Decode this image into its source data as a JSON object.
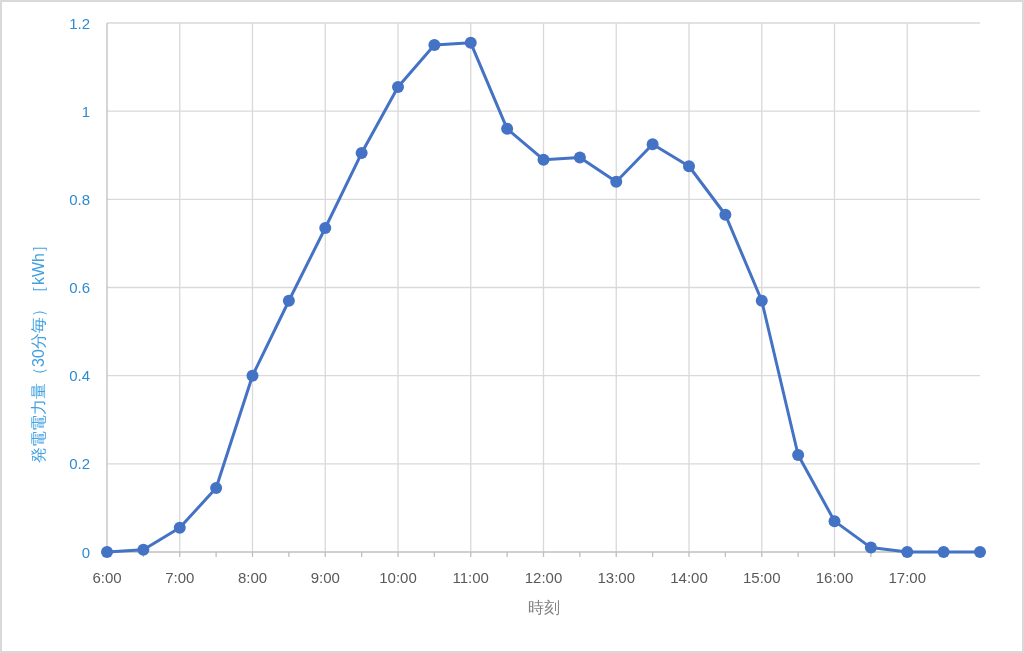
{
  "chart_data": {
    "type": "line",
    "xlabel": "時刻",
    "ylabel": "発電電力量（30分毎）［kWh］",
    "categories": [
      "6:00",
      null,
      "7:00",
      null,
      "8:00",
      null,
      "9:00",
      null,
      "10:00",
      null,
      "11:00",
      null,
      "12:00",
      null,
      "13:00",
      null,
      "14:00",
      null,
      "15:00",
      null,
      "16:00",
      null,
      "17:00",
      null,
      null
    ],
    "values": [
      0,
      0.005,
      0.055,
      0.145,
      0.4,
      0.57,
      0.735,
      0.905,
      1.055,
      1.15,
      1.155,
      0.96,
      0.89,
      0.895,
      0.84,
      0.925,
      0.875,
      0.765,
      0.57,
      0.22,
      0.07,
      0.01,
      0,
      0,
      0
    ],
    "color": "#4472c4",
    "marker": "circle",
    "line_style": "solid",
    "ylim": [
      0,
      1.2
    ],
    "yticks": [
      0,
      0.2,
      0.4,
      0.6,
      0.8,
      1,
      1.2
    ],
    "grid": true
  }
}
